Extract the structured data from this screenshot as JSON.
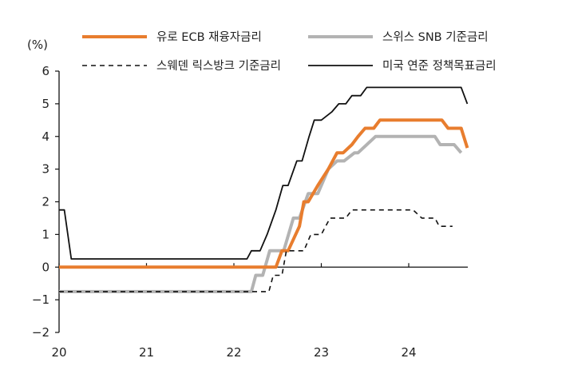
{
  "chart_data": {
    "type": "line",
    "unit_label": "(%)",
    "xlim": [
      2020.0,
      2024.75
    ],
    "ylim": [
      -2,
      6
    ],
    "x_ticks": [
      {
        "value": 2020,
        "label": "20"
      },
      {
        "value": 2021,
        "label": "21"
      },
      {
        "value": 2022,
        "label": "22"
      },
      {
        "value": 2023,
        "label": "23"
      },
      {
        "value": 2024,
        "label": "24"
      }
    ],
    "y_ticks": [
      {
        "value": -2,
        "label": "−2"
      },
      {
        "value": -1,
        "label": "−1"
      },
      {
        "value": 0,
        "label": "0"
      },
      {
        "value": 1,
        "label": "1"
      },
      {
        "value": 2,
        "label": "2"
      },
      {
        "value": 3,
        "label": "3"
      },
      {
        "value": 4,
        "label": "4"
      },
      {
        "value": 5,
        "label": "5"
      },
      {
        "value": 6,
        "label": "6"
      }
    ],
    "legend_position": "top",
    "series": [
      {
        "name": "유로 ECB 재융자금리",
        "color": "#e87d2e",
        "style": "solid-thick",
        "points": [
          [
            2020.0,
            0
          ],
          [
            2022.2,
            0
          ],
          [
            2022.48,
            0
          ],
          [
            2022.55,
            0.5
          ],
          [
            2022.62,
            0.5
          ],
          [
            2022.75,
            1.25
          ],
          [
            2022.8,
            2.0
          ],
          [
            2022.85,
            2.0
          ],
          [
            2022.96,
            2.5
          ],
          [
            2023.08,
            3.0
          ],
          [
            2023.18,
            3.5
          ],
          [
            2023.25,
            3.5
          ],
          [
            2023.35,
            3.75
          ],
          [
            2023.42,
            4.0
          ],
          [
            2023.5,
            4.25
          ],
          [
            2023.6,
            4.25
          ],
          [
            2023.67,
            4.5
          ],
          [
            2024.38,
            4.5
          ],
          [
            2024.45,
            4.25
          ],
          [
            2024.6,
            4.25
          ],
          [
            2024.67,
            3.65
          ]
        ]
      },
      {
        "name": "스위스 SNB 기준금리",
        "color": "#b3b3b3",
        "style": "solid-thick",
        "points": [
          [
            2020.0,
            -0.75
          ],
          [
            2022.2,
            -0.75
          ],
          [
            2022.25,
            -0.25
          ],
          [
            2022.33,
            -0.25
          ],
          [
            2022.41,
            0.5
          ],
          [
            2022.5,
            0.5
          ],
          [
            2022.57,
            0.5
          ],
          [
            2022.68,
            1.5
          ],
          [
            2022.75,
            1.5
          ],
          [
            2022.85,
            2.25
          ],
          [
            2022.96,
            2.25
          ],
          [
            2023.08,
            3.0
          ],
          [
            2023.18,
            3.25
          ],
          [
            2023.26,
            3.25
          ],
          [
            2023.38,
            3.5
          ],
          [
            2023.42,
            3.5
          ],
          [
            2023.62,
            4.0
          ],
          [
            2024.3,
            4.0
          ],
          [
            2024.36,
            3.75
          ],
          [
            2024.52,
            3.75
          ],
          [
            2024.6,
            3.5
          ]
        ]
      },
      {
        "name": "스웨덴 릭스방크 기준금리",
        "color": "#111111",
        "style": "dashed",
        "points": [
          [
            2020.0,
            -0.75
          ],
          [
            2022.4,
            -0.75
          ],
          [
            2022.45,
            -0.25
          ],
          [
            2022.55,
            -0.25
          ],
          [
            2022.6,
            0.5
          ],
          [
            2022.8,
            0.5
          ],
          [
            2022.88,
            1.0
          ],
          [
            2023.0,
            1.0
          ],
          [
            2023.1,
            1.5
          ],
          [
            2023.2,
            1.5
          ],
          [
            2023.28,
            1.5
          ],
          [
            2023.35,
            1.75
          ],
          [
            2024.05,
            1.75
          ],
          [
            2024.15,
            1.5
          ],
          [
            2024.3,
            1.5
          ],
          [
            2024.35,
            1.25
          ],
          [
            2024.5,
            1.25
          ]
        ]
      },
      {
        "name": "미국 연준 정책목표금리",
        "color": "#111111",
        "style": "solid-thin",
        "points": [
          [
            2020.0,
            1.75
          ],
          [
            2020.06,
            1.75
          ],
          [
            2020.14,
            0.25
          ],
          [
            2022.15,
            0.25
          ],
          [
            2022.2,
            0.5
          ],
          [
            2022.3,
            0.5
          ],
          [
            2022.38,
            1.0
          ],
          [
            2022.48,
            1.75
          ],
          [
            2022.56,
            2.5
          ],
          [
            2022.62,
            2.5
          ],
          [
            2022.72,
            3.25
          ],
          [
            2022.78,
            3.25
          ],
          [
            2022.86,
            4.0
          ],
          [
            2022.92,
            4.5
          ],
          [
            2023.0,
            4.5
          ],
          [
            2023.12,
            4.75
          ],
          [
            2023.2,
            5.0
          ],
          [
            2023.28,
            5.0
          ],
          [
            2023.35,
            5.25
          ],
          [
            2023.45,
            5.25
          ],
          [
            2023.52,
            5.5
          ],
          [
            2024.6,
            5.5
          ],
          [
            2024.67,
            5.0
          ]
        ]
      }
    ]
  }
}
